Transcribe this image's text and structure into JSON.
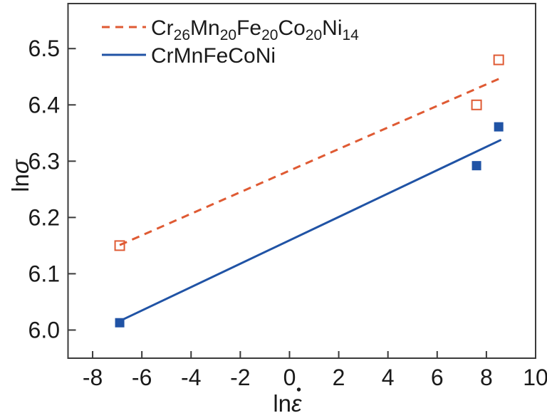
{
  "figure": {
    "background": "#ffffff"
  },
  "colors": {
    "accent_orange": "#DF5A33",
    "accent_blue": "#2053A5",
    "frame": "#3A3A3A",
    "text": "#1A1A1A"
  },
  "chart_data": {
    "type": "scatter",
    "title": "",
    "xlabel": "ln ε̇",
    "ylabel": "ln σ",
    "xlabel_parts": {
      "prefix": "ln",
      "symbol": "ε",
      "dot_above": true
    },
    "ylabel_parts": {
      "prefix": "ln",
      "symbol": "σ",
      "dot_above": false
    },
    "xlim": [
      -9,
      10
    ],
    "ylim": [
      5.95,
      6.58
    ],
    "x_ticks": [
      -8,
      -6,
      -4,
      -2,
      0,
      2,
      4,
      6,
      8,
      10
    ],
    "x_tick_labels": [
      "-8",
      "-6",
      "-4",
      "-2",
      "0",
      "2",
      "4",
      "6",
      "8",
      "10"
    ],
    "y_ticks": [
      6.0,
      6.1,
      6.2,
      6.3,
      6.4,
      6.5
    ],
    "y_tick_labels": [
      "6.0",
      "6.1",
      "6.2",
      "6.3",
      "6.4",
      "6.5"
    ],
    "grid": false,
    "legend_position": "top-left",
    "series": [
      {
        "name": "Cr26Mn20Fe20Co20Ni14",
        "label_parts": [
          [
            "Cr",
            "26"
          ],
          [
            "Mn",
            "20"
          ],
          [
            "Fe",
            "20"
          ],
          [
            "Co",
            "20"
          ],
          [
            "Ni",
            "14"
          ]
        ],
        "color": "#DF5A33",
        "marker": "open-square",
        "line_style": "dashed",
        "points": [
          [
            -6.9,
            6.15
          ],
          [
            7.6,
            6.4
          ],
          [
            8.5,
            6.48
          ]
        ],
        "fit_line": [
          [
            -6.9,
            6.151
          ],
          [
            8.6,
            6.448
          ]
        ]
      },
      {
        "name": "CrMnFeCoNi",
        "label_parts": [
          [
            "CrMnFeCoNi",
            ""
          ]
        ],
        "color": "#2053A5",
        "marker": "filled-square",
        "line_style": "solid",
        "points": [
          [
            -6.9,
            6.013
          ],
          [
            7.6,
            6.292
          ],
          [
            8.5,
            6.361
          ]
        ],
        "fit_line": [
          [
            -6.9,
            6.016
          ],
          [
            8.6,
            6.338
          ]
        ]
      }
    ]
  }
}
